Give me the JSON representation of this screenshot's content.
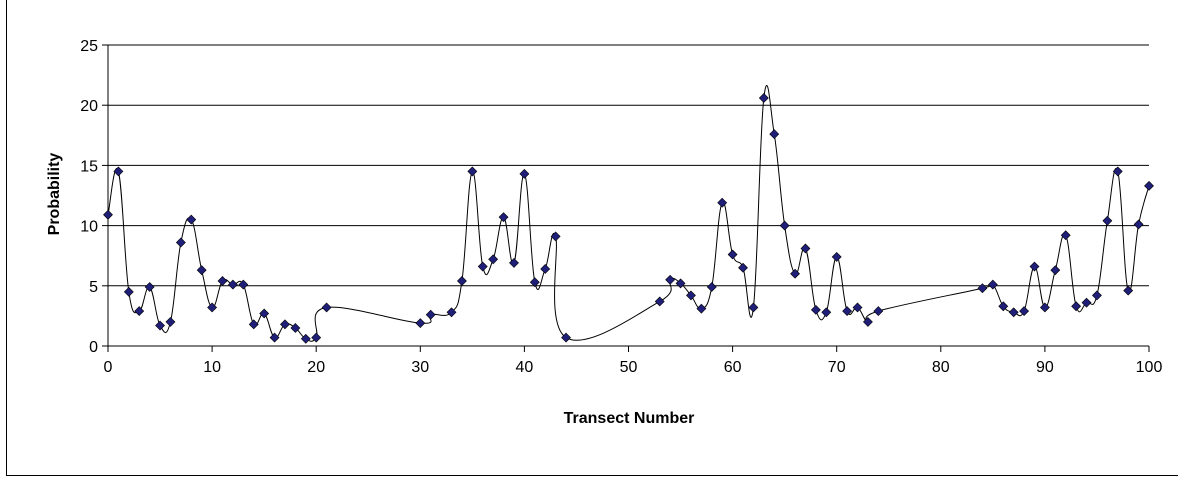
{
  "chart_data": {
    "type": "scatter",
    "title": "",
    "xlabel": "Transect Number",
    "ylabel": "Probability",
    "xlim": [
      0,
      100
    ],
    "ylim": [
      0,
      25
    ],
    "x_ticks": [
      "0",
      "10",
      "20",
      "30",
      "40",
      "50",
      "60",
      "70",
      "80",
      "90",
      "100"
    ],
    "y_ticks": [
      "0",
      "5",
      "10",
      "15",
      "20",
      "25"
    ],
    "grid": "horizontal",
    "smoothed_line": true,
    "colors": {
      "marker": "#1f1f7a",
      "line": "#000000",
      "grid": "#000000"
    },
    "series": [
      {
        "x": [
          0,
          1,
          2,
          3,
          4,
          5,
          6,
          7,
          8,
          9,
          10,
          11,
          12,
          13,
          14,
          15,
          16,
          17,
          18,
          19,
          20,
          21,
          30,
          31,
          33,
          34,
          35,
          36,
          37,
          38,
          39,
          40,
          41,
          42,
          43,
          44,
          53,
          54,
          55,
          56,
          57,
          58,
          59,
          60,
          61,
          62,
          63,
          64,
          65,
          66,
          67,
          68,
          69,
          70,
          71,
          72,
          73,
          74,
          84,
          85,
          86,
          87,
          88,
          89,
          90,
          91,
          92,
          93,
          94,
          95,
          96,
          97,
          98,
          99,
          100
        ],
        "y": [
          10.9,
          14.5,
          4.5,
          2.9,
          4.9,
          1.7,
          2.0,
          8.6,
          10.5,
          6.3,
          3.2,
          5.4,
          5.1,
          5.1,
          1.8,
          2.7,
          0.7,
          1.8,
          1.5,
          0.6,
          0.7,
          3.2,
          1.9,
          2.6,
          2.8,
          5.4,
          14.5,
          6.6,
          7.2,
          10.7,
          6.9,
          14.3,
          5.3,
          6.4,
          9.1,
          0.7,
          3.7,
          5.5,
          5.2,
          4.2,
          3.1,
          4.9,
          11.9,
          7.6,
          6.5,
          3.2,
          20.6,
          17.6,
          10.0,
          6.0,
          8.1,
          3.0,
          2.8,
          7.4,
          2.9,
          3.2,
          2.0,
          2.9,
          4.8,
          5.1,
          3.3,
          2.8,
          2.9,
          6.6,
          3.2,
          6.3,
          9.2,
          3.3,
          3.6,
          4.2,
          10.4,
          14.5,
          4.6,
          10.1,
          13.3
        ]
      }
    ]
  }
}
